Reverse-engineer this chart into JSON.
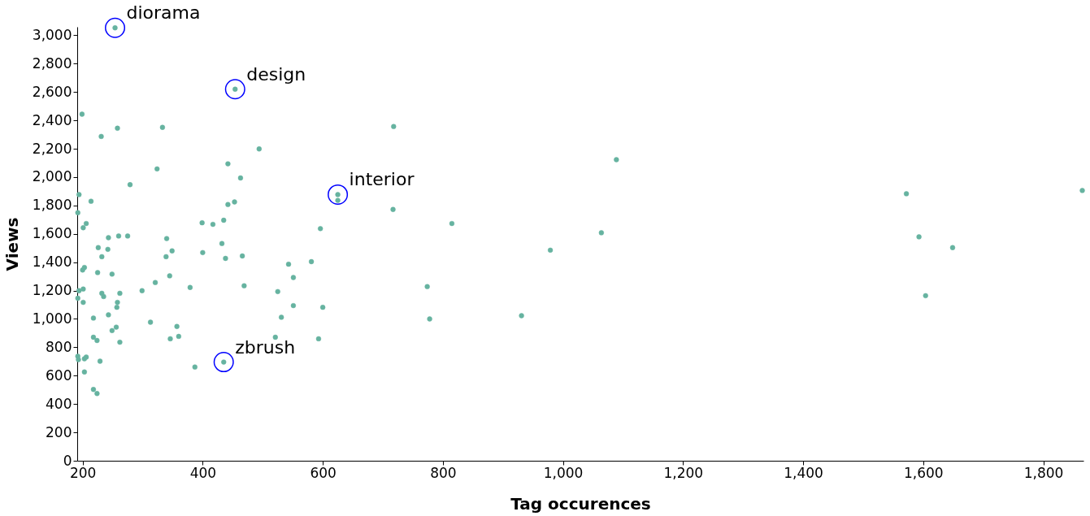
{
  "chart_data": {
    "type": "scatter",
    "xlabel": "Tag occurences",
    "ylabel": "Views",
    "xlim": [
      191,
      1867
    ],
    "ylim": [
      0,
      3060
    ],
    "xticks": [
      200,
      {
        "value": 400,
        "label": "400"
      },
      600,
      800,
      {
        "value": 1000,
        "label": "1,000"
      },
      {
        "value": 1200,
        "label": "1,200"
      },
      {
        "value": 1400,
        "label": "1,400"
      },
      {
        "value": 1600,
        "label": "1,600"
      },
      {
        "value": 1800,
        "label": "1,800"
      }
    ],
    "yticks": [
      0,
      200,
      400,
      600,
      800,
      {
        "value": 1000,
        "label": "1,000"
      },
      {
        "value": 1200,
        "label": "1,200"
      },
      {
        "value": 1400,
        "label": "1,400"
      },
      {
        "value": 1600,
        "label": "1,600"
      },
      {
        "value": 1800,
        "label": "1,800"
      },
      {
        "value": 2000,
        "label": "2,000"
      },
      {
        "value": 2200,
        "label": "2,200"
      },
      {
        "value": 2400,
        "label": "2,400"
      },
      {
        "value": 2600,
        "label": "2,600"
      },
      {
        "value": 2800,
        "label": "2,800"
      },
      {
        "value": 3000,
        "label": "3,000"
      }
    ],
    "grid": false,
    "marker": "circle",
    "series": [
      {
        "color": "#66b3a0",
        "x": [
          199,
          254,
          454,
          625,
          625,
          435,
          231,
          258,
          333,
          324,
          279,
          194,
          214,
          192,
          206,
          201,
          260,
          275,
          243,
          226,
          242,
          200,
          203,
          225,
          249,
          232,
          194,
          192,
          201,
          201,
          232,
          235,
          262,
          258,
          257,
          218,
          243,
          249,
          256,
          262,
          218,
          224,
          192,
          193,
          203,
          206,
          229,
          203,
          218,
          224,
          299,
          321,
          313,
          340,
          339,
          349,
          345,
          346,
          357,
          360,
          379,
          387,
          399,
          400,
          417,
          432,
          435,
          438,
          442,
          442,
          453,
          463,
          466,
          469,
          494,
          521,
          525,
          531,
          543,
          551,
          551,
          581,
          593,
          596,
          600,
          718,
          717,
          774,
          778,
          815,
          931,
          979,
          1064,
          1089,
          1572,
          1593,
          1604,
          1649,
          1865
        ],
        "values": [
          2444,
          3053,
          2620,
          1877,
          1836,
          696,
          2287,
          2345,
          2351,
          2058,
          1947,
          1877,
          1830,
          1749,
          1673,
          1643,
          1585,
          1585,
          1573,
          1503,
          1491,
          1345,
          1363,
          1327,
          1316,
          1439,
          1199,
          1146,
          1211,
          1117,
          1181,
          1158,
          1181,
          1117,
          1082,
          1006,
          1029,
          918,
          942,
          836,
          871,
          848,
          737,
          713,
          719,
          731,
          702,
          626,
          503,
          474,
          1199,
          1257,
          977,
          1567,
          1439,
          1480,
          1304,
          860,
          947,
          877,
          1222,
          661,
          1678,
          1468,
          1667,
          1532,
          1696,
          1427,
          1807,
          2094,
          1825,
          1994,
          1444,
          1234,
          2199,
          871,
          1193,
          1012,
          1386,
          1292,
          1094,
          1404,
          860,
          1637,
          1082,
          2357,
          1772,
          1228,
          1000,
          1673,
          1023,
          1485,
          1608,
          2123,
          1883,
          1579,
          1164,
          1503,
          1906
        ]
      }
    ],
    "annotations": [
      {
        "text": "diorama",
        "x": 254,
        "y": 3053
      },
      {
        "text": "design",
        "x": 454,
        "y": 2620
      },
      {
        "text": "interior",
        "x": 625,
        "y": 1877
      },
      {
        "text": "zbrush",
        "x": 435,
        "y": 696
      }
    ]
  }
}
